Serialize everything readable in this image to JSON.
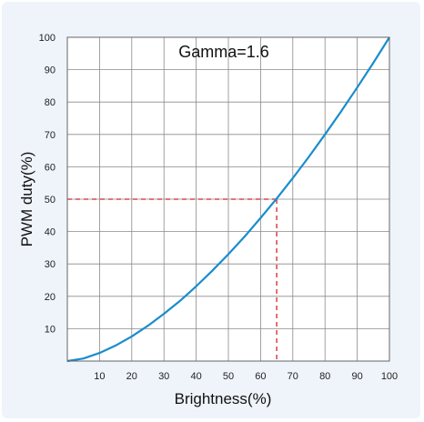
{
  "chart_data": {
    "type": "line",
    "title": "",
    "annotation": "Gamma=1.6",
    "xlabel": "Brightness(%)",
    "ylabel": "PWM duty(%)",
    "xlim": [
      0,
      100
    ],
    "ylim": [
      0,
      100
    ],
    "x_ticks": [
      "10",
      "20",
      "30",
      "40",
      "50",
      "60",
      "70",
      "80",
      "90",
      "100"
    ],
    "y_ticks": [
      "10",
      "20",
      "30",
      "40",
      "50",
      "60",
      "70",
      "80",
      "90",
      "100"
    ],
    "grid": true,
    "series": [
      {
        "gamma": 1.6,
        "color": "#1a8ccc",
        "x": [
          0,
          5,
          10,
          15,
          20,
          25,
          30,
          35,
          40,
          45,
          50,
          55,
          60,
          65,
          70,
          75,
          80,
          85,
          90,
          95,
          100
        ],
        "y": [
          0,
          0.8,
          2.5,
          4.8,
          7.6,
          10.9,
          14.6,
          18.6,
          23.1,
          27.9,
          33.0,
          38.4,
          44.2,
          50.2,
          56.5,
          63.1,
          70.0,
          77.1,
          84.5,
          92.1,
          100
        ]
      }
    ],
    "reference": {
      "x": 65,
      "y": 50,
      "color": "#d0242a"
    }
  }
}
